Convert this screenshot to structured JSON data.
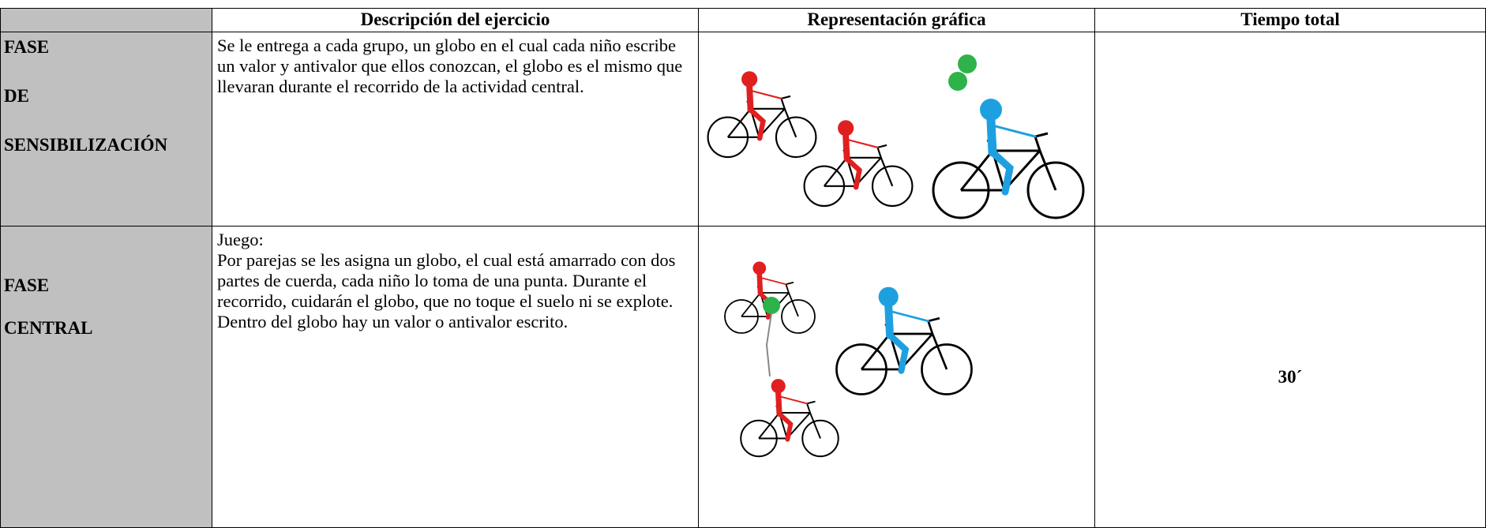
{
  "table": {
    "header": [
      "Descripción del ejercicio",
      "Representación gráfica",
      "Tiempo total"
    ],
    "rows": [
      {
        "phase": [
          "FASE",
          "DE",
          "SENSIBILIZACIÓN"
        ],
        "description": [
          "Se le entrega a cada grupo, un globo en el cual cada niño escribe un valor y antivalor que ellos conozcan, el globo es el mismo que llevaran durante el recorrido de la actividad central."
        ]
      },
      {
        "phase": [
          "FASE",
          "CENTRAL"
        ],
        "description": [
          "Juego:",
          "Por parejas se les asigna un globo, el cual está amarrado con dos partes de cuerda, cada niño lo toma de una punta. Durante el recorrido, cuidarán el globo, que no toque el suelo ni se explote.",
          "Dentro del globo hay un valor o antivalor escrito."
        ],
        "time": "30´"
      }
    ]
  }
}
